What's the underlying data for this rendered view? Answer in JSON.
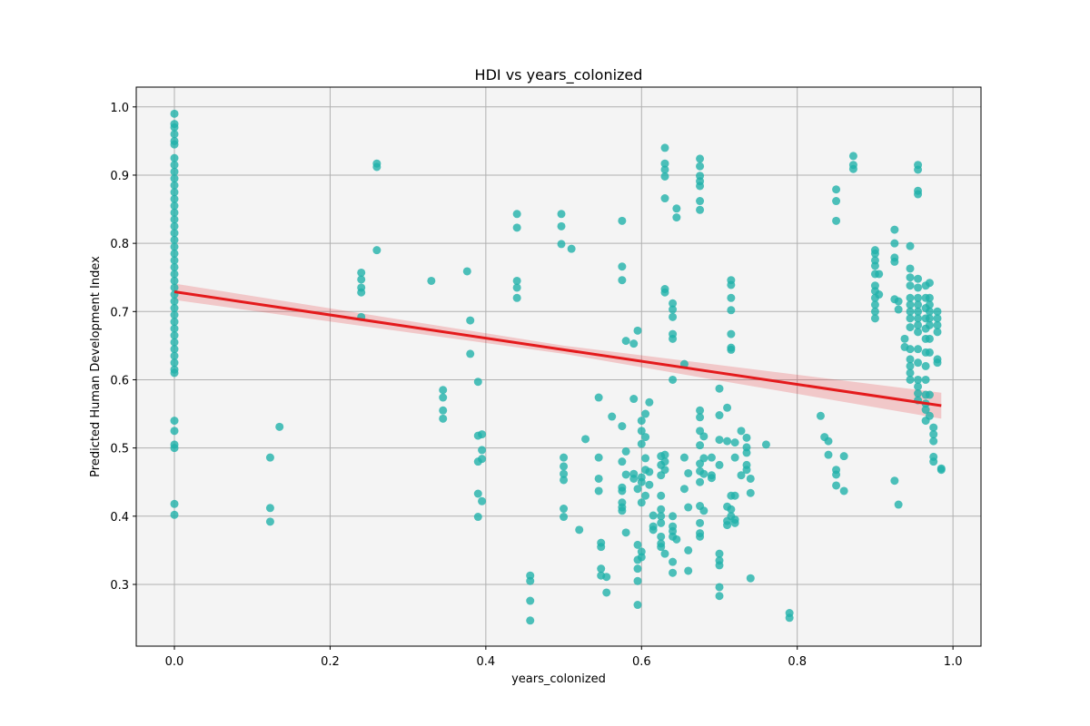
{
  "chart_data": {
    "type": "scatter",
    "title": "HDI vs years_colonized",
    "x_label": "years_colonized",
    "y_label": "Predicted Human Development Index",
    "color": "#20b2aa",
    "grid": true,
    "xlim": [
      -0.049,
      1.036
    ],
    "ylim": [
      0.2095,
      1.029
    ],
    "xticks": [
      {
        "value": 0,
        "label": "0.0"
      },
      0.2,
      0.4,
      0.6,
      0.8,
      {
        "value": 1,
        "label": "1.0"
      }
    ],
    "yticks": [
      0.3,
      0.4,
      0.5,
      0.6,
      0.7,
      0.8,
      0.9,
      {
        "value": 1,
        "label": "1.0"
      }
    ],
    "fit": {
      "color": "#e41a1c",
      "x": [
        0,
        0.5,
        0.985
      ],
      "values": [
        0.729,
        0.644,
        0.562
      ],
      "lower": [
        0.717,
        0.638,
        0.543
      ],
      "upper": [
        0.741,
        0.65,
        0.581
      ]
    },
    "x": [
      0,
      0,
      0,
      0,
      0,
      0,
      0,
      0,
      0,
      0,
      0,
      0,
      0,
      0,
      0,
      0,
      0,
      0,
      0,
      0,
      0,
      0,
      0,
      0,
      0,
      0,
      0,
      0,
      0,
      0,
      0,
      0,
      0,
      0,
      0,
      0,
      0,
      0,
      0,
      0,
      0,
      0,
      0,
      0,
      0,
      0.123,
      0.123,
      0.123,
      0.135,
      0.24,
      0.24,
      0.24,
      0.24,
      0.24,
      0.26,
      0.26,
      0.26,
      0.33,
      0.345,
      0.345,
      0.345,
      0.345,
      0.376,
      0.38,
      0.38,
      0.39,
      0.39,
      0.39,
      0.39,
      0.39,
      0.395,
      0.395,
      0.395,
      0.395,
      0.44,
      0.44,
      0.44,
      0.44,
      0.44,
      0.457,
      0.457,
      0.457,
      0.457,
      0.497,
      0.497,
      0.497,
      0.5,
      0.5,
      0.5,
      0.5,
      0.5,
      0.5,
      0.51,
      0.52,
      0.528,
      0.545,
      0.545,
      0.545,
      0.545,
      0.548,
      0.548,
      0.548,
      0.548,
      0.555,
      0.555,
      0.562,
      0.575,
      0.575,
      0.575,
      0.575,
      0.575,
      0.575,
      0.575,
      0.575,
      0.575,
      0.575,
      0.58,
      0.58,
      0.58,
      0.58,
      0.59,
      0.59,
      0.59,
      0.59,
      0.595,
      0.595,
      0.595,
      0.595,
      0.595,
      0.595,
      0.595,
      0.6,
      0.6,
      0.6,
      0.6,
      0.6,
      0.6,
      0.6,
      0.6,
      0.605,
      0.605,
      0.605,
      0.605,
      0.605,
      0.61,
      0.61,
      0.61,
      0.615,
      0.615,
      0.615,
      0.625,
      0.625,
      0.625,
      0.625,
      0.625,
      0.625,
      0.625,
      0.625,
      0.625,
      0.625,
      0.63,
      0.63,
      0.63,
      0.63,
      0.63,
      0.63,
      0.63,
      0.63,
      0.63,
      0.63,
      0.63,
      0.64,
      0.64,
      0.64,
      0.64,
      0.64,
      0.64,
      0.64,
      0.64,
      0.64,
      0.64,
      0.64,
      0.64,
      0.645,
      0.645,
      0.645,
      0.655,
      0.655,
      0.655,
      0.66,
      0.66,
      0.66,
      0.66,
      0.675,
      0.675,
      0.675,
      0.675,
      0.675,
      0.675,
      0.675,
      0.675,
      0.675,
      0.675,
      0.675,
      0.675,
      0.675,
      0.675,
      0.675,
      0.675,
      0.675,
      0.675,
      0.68,
      0.68,
      0.68,
      0.68,
      0.69,
      0.69,
      0.69,
      0.7,
      0.7,
      0.7,
      0.7,
      0.7,
      0.7,
      0.7,
      0.7,
      0.7,
      0.71,
      0.71,
      0.71,
      0.71,
      0.71,
      0.715,
      0.715,
      0.715,
      0.715,
      0.715,
      0.715,
      0.715,
      0.715,
      0.715,
      0.715,
      0.72,
      0.72,
      0.72,
      0.72,
      0.72,
      0.728,
      0.728,
      0.735,
      0.735,
      0.735,
      0.735,
      0.735,
      0.74,
      0.74,
      0.74,
      0.76,
      0.79,
      0.79,
      0.83,
      0.835,
      0.84,
      0.84,
      0.85,
      0.85,
      0.85,
      0.85,
      0.85,
      0.85,
      0.86,
      0.86,
      0.872,
      0.872,
      0.872,
      0.9,
      0.9,
      0.9,
      0.9,
      0.9,
      0.9,
      0.9,
      0.9,
      0.9,
      0.9,
      0.9,
      0.905,
      0.905,
      0.925,
      0.925,
      0.925,
      0.925,
      0.925,
      0.925,
      0.93,
      0.93,
      0.93,
      0.938,
      0.938,
      0.945,
      0.945,
      0.945,
      0.945,
      0.945,
      0.945,
      0.945,
      0.945,
      0.945,
      0.945,
      0.945,
      0.945,
      0.945,
      0.945,
      0.955,
      0.955,
      0.955,
      0.955,
      0.955,
      0.955,
      0.955,
      0.955,
      0.955,
      0.955,
      0.955,
      0.955,
      0.955,
      0.955,
      0.955,
      0.955,
      0.955,
      0.955,
      0.965,
      0.965,
      0.965,
      0.965,
      0.965,
      0.965,
      0.965,
      0.965,
      0.965,
      0.965,
      0.965,
      0.965,
      0.965,
      0.97,
      0.97,
      0.97,
      0.97,
      0.97,
      0.97,
      0.97,
      0.97,
      0.97,
      0.97,
      0.975,
      0.975,
      0.975,
      0.975,
      0.975,
      0.98,
      0.98,
      0.98,
      0.98,
      0.98,
      0.98,
      0.985,
      0.985
    ],
    "values": [
      0.99,
      0.975,
      0.97,
      0.96,
      0.95,
      0.945,
      0.925,
      0.915,
      0.905,
      0.895,
      0.885,
      0.875,
      0.865,
      0.855,
      0.845,
      0.835,
      0.825,
      0.815,
      0.805,
      0.795,
      0.785,
      0.775,
      0.765,
      0.755,
      0.745,
      0.735,
      0.725,
      0.715,
      0.705,
      0.695,
      0.685,
      0.675,
      0.665,
      0.655,
      0.645,
      0.635,
      0.625,
      0.615,
      0.61,
      0.54,
      0.525,
      0.505,
      0.5,
      0.418,
      0.402,
      0.486,
      0.412,
      0.392,
      0.531,
      0.757,
      0.747,
      0.735,
      0.728,
      0.692,
      0.917,
      0.912,
      0.79,
      0.745,
      0.585,
      0.574,
      0.555,
      0.543,
      0.759,
      0.687,
      0.638,
      0.597,
      0.518,
      0.48,
      0.433,
      0.399,
      0.52,
      0.497,
      0.484,
      0.422,
      0.843,
      0.823,
      0.745,
      0.735,
      0.72,
      0.313,
      0.305,
      0.276,
      0.247,
      0.843,
      0.825,
      0.799,
      0.486,
      0.473,
      0.462,
      0.453,
      0.411,
      0.399,
      0.792,
      0.38,
      0.513,
      0.574,
      0.486,
      0.455,
      0.437,
      0.361,
      0.355,
      0.323,
      0.313,
      0.311,
      0.288,
      0.546,
      0.833,
      0.766,
      0.746,
      0.532,
      0.48,
      0.442,
      0.437,
      0.42,
      0.413,
      0.408,
      0.657,
      0.495,
      0.461,
      0.376,
      0.653,
      0.572,
      0.462,
      0.455,
      0.672,
      0.44,
      0.358,
      0.336,
      0.323,
      0.305,
      0.27,
      0.54,
      0.525,
      0.506,
      0.457,
      0.45,
      0.42,
      0.348,
      0.34,
      0.55,
      0.516,
      0.485,
      0.468,
      0.43,
      0.567,
      0.465,
      0.446,
      0.401,
      0.385,
      0.38,
      0.488,
      0.475,
      0.46,
      0.43,
      0.41,
      0.4,
      0.39,
      0.37,
      0.36,
      0.355,
      0.94,
      0.917,
      0.908,
      0.898,
      0.866,
      0.733,
      0.728,
      0.49,
      0.48,
      0.468,
      0.345,
      0.712,
      0.703,
      0.692,
      0.667,
      0.66,
      0.6,
      0.4,
      0.385,
      0.378,
      0.37,
      0.333,
      0.317,
      0.851,
      0.838,
      0.366,
      0.623,
      0.486,
      0.44,
      0.463,
      0.413,
      0.35,
      0.32,
      0.924,
      0.913,
      0.899,
      0.891,
      0.884,
      0.862,
      0.849,
      0.555,
      0.545,
      0.525,
      0.504,
      0.477,
      0.466,
      0.45,
      0.415,
      0.39,
      0.375,
      0.37,
      0.517,
      0.485,
      0.462,
      0.408,
      0.486,
      0.46,
      0.456,
      0.587,
      0.548,
      0.512,
      0.475,
      0.345,
      0.335,
      0.328,
      0.296,
      0.283,
      0.559,
      0.51,
      0.414,
      0.393,
      0.387,
      0.746,
      0.739,
      0.72,
      0.702,
      0.667,
      0.647,
      0.644,
      0.43,
      0.41,
      0.4,
      0.508,
      0.486,
      0.43,
      0.395,
      0.39,
      0.525,
      0.46,
      0.515,
      0.501,
      0.493,
      0.475,
      0.468,
      0.455,
      0.434,
      0.309,
      0.505,
      0.258,
      0.251,
      0.547,
      0.516,
      0.51,
      0.49,
      0.879,
      0.862,
      0.833,
      0.468,
      0.461,
      0.445,
      0.488,
      0.437,
      0.928,
      0.915,
      0.909,
      0.79,
      0.785,
      0.775,
      0.767,
      0.755,
      0.738,
      0.73,
      0.72,
      0.71,
      0.7,
      0.69,
      0.755,
      0.725,
      0.82,
      0.8,
      0.779,
      0.773,
      0.718,
      0.452,
      0.715,
      0.703,
      0.417,
      0.66,
      0.648,
      0.796,
      0.763,
      0.75,
      0.738,
      0.72,
      0.71,
      0.7,
      0.69,
      0.677,
      0.645,
      0.63,
      0.62,
      0.61,
      0.6,
      0.915,
      0.908,
      0.877,
      0.872,
      0.748,
      0.735,
      0.72,
      0.71,
      0.7,
      0.69,
      0.68,
      0.67,
      0.645,
      0.625,
      0.6,
      0.59,
      0.58,
      0.57,
      0.738,
      0.72,
      0.705,
      0.69,
      0.675,
      0.66,
      0.64,
      0.62,
      0.6,
      0.578,
      0.565,
      0.556,
      0.54,
      0.742,
      0.72,
      0.71,
      0.7,
      0.69,
      0.68,
      0.66,
      0.64,
      0.578,
      0.547,
      0.53,
      0.52,
      0.51,
      0.487,
      0.48,
      0.7,
      0.69,
      0.68,
      0.67,
      0.63,
      0.625,
      0.47,
      0.468
    ]
  }
}
